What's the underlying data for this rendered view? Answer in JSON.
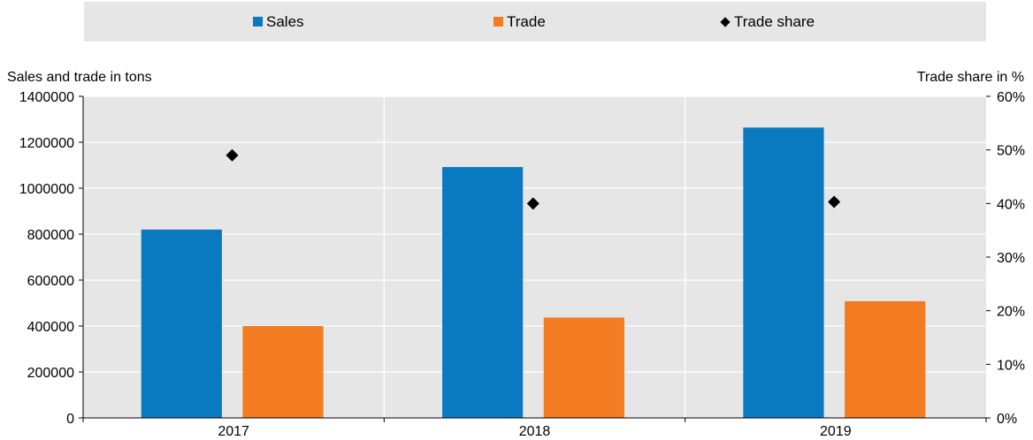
{
  "chart_data": {
    "type": "bar",
    "categories": [
      "2017",
      "2018",
      "2019"
    ],
    "series": [
      {
        "name": "Sales",
        "values": [
          820000,
          1092000,
          1264000
        ],
        "color": "#0a7ac0",
        "axis": "left",
        "kind": "bar"
      },
      {
        "name": "Trade",
        "values": [
          400000,
          437000,
          508000
        ],
        "color": "#f37c22",
        "axis": "left",
        "kind": "bar"
      },
      {
        "name": "Trade share",
        "values": [
          49,
          40,
          40.3
        ],
        "color": "#000000",
        "axis": "right",
        "kind": "marker",
        "marker": "diamond"
      }
    ],
    "ylabel": "Sales and trade in tons",
    "ylabel_right": "Trade share in %",
    "ylim": [
      0,
      1400000
    ],
    "ylim_right": [
      0,
      60
    ],
    "yticks": [
      "0",
      "200000",
      "400000",
      "600000",
      "800000",
      "1000000",
      "1200000",
      "1400000"
    ],
    "yticks_right": [
      "0%",
      "10%",
      "20%",
      "30%",
      "40%",
      "50%",
      "60%"
    ],
    "grid": true,
    "legend": "top",
    "plot_background": "#e6e6e6"
  }
}
